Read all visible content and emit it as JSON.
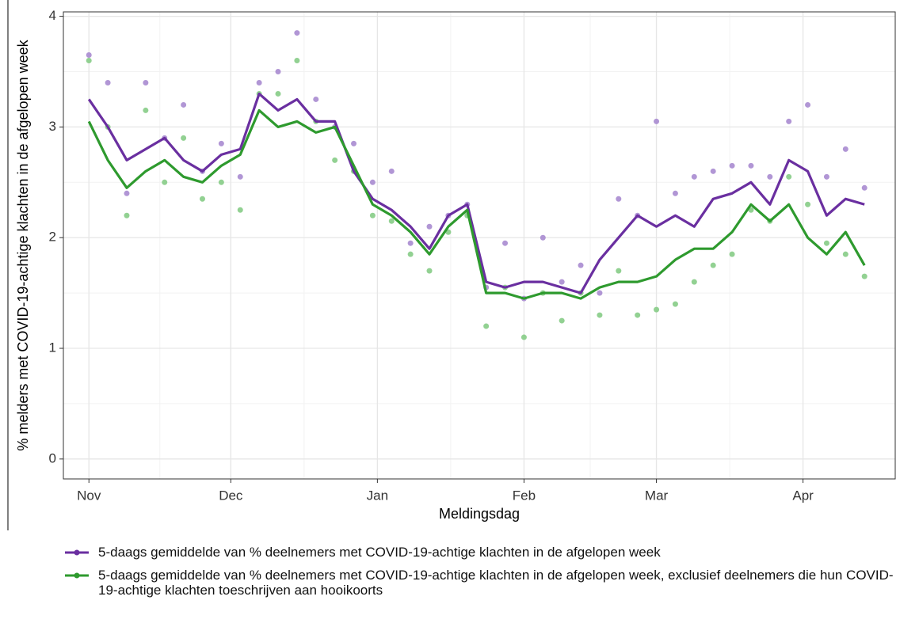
{
  "chart_data": {
    "type": "line",
    "y_label": "% melders met COVID-19-achtige klachten in de afgelopen week",
    "x_label": "Meldingsdag",
    "x": [
      0,
      4,
      8,
      12,
      16,
      20,
      24,
      28,
      32,
      36,
      40,
      44,
      48,
      52,
      56,
      60,
      64,
      68,
      72,
      76,
      80,
      84,
      88,
      92,
      96,
      100,
      104,
      108,
      112,
      116,
      120,
      124,
      128,
      132,
      136,
      140,
      144,
      148,
      152,
      156,
      160,
      164
    ],
    "xlim": [
      -5.4,
      170.5
    ],
    "xticks": [
      {
        "value": 0,
        "label": "Nov"
      },
      {
        "value": 30,
        "label": "Dec"
      },
      {
        "value": 61,
        "label": "Jan"
      },
      {
        "value": 92,
        "label": "Feb"
      },
      {
        "value": 120,
        "label": "Mar"
      },
      {
        "value": 151,
        "label": "Apr"
      }
    ],
    "ylim": [
      -0.18,
      4.04
    ],
    "yticks": [
      0,
      1,
      2,
      3,
      4
    ],
    "grid": true,
    "series": [
      {
        "name": "5-daags gemiddelde van % deelnemers met COVID-19-achtige klachten in de afgelopen week",
        "color": "#6a2fa0",
        "dot_color": "#a98bd0",
        "values": [
          3.25,
          3.0,
          2.7,
          2.8,
          2.9,
          2.7,
          2.6,
          2.75,
          2.8,
          3.3,
          3.15,
          3.25,
          3.05,
          3.05,
          2.6,
          2.35,
          2.25,
          2.1,
          1.9,
          2.2,
          2.3,
          1.6,
          1.55,
          1.6,
          1.6,
          1.55,
          1.5,
          1.8,
          2.0,
          2.2,
          2.1,
          2.2,
          2.1,
          2.35,
          2.4,
          2.5,
          2.3,
          2.7,
          2.6,
          2.2,
          2.35,
          2.3
        ],
        "dots": [
          3.65,
          3.4,
          2.4,
          3.4,
          2.9,
          3.2,
          2.6,
          2.85,
          2.55,
          3.4,
          3.5,
          3.85,
          3.25,
          3.0,
          2.85,
          2.5,
          2.6,
          1.95,
          2.1,
          2.2,
          2.3,
          1.55,
          1.95,
          1.45,
          2.0,
          1.6,
          1.75,
          1.5,
          2.35,
          2.2,
          3.05,
          2.4,
          2.55,
          2.6,
          2.65,
          2.65,
          2.55,
          3.05,
          3.2,
          2.55,
          2.8,
          2.45
        ]
      },
      {
        "name": "5-daags gemiddelde van % deelnemers met COVID-19-achtige klachten in de afgelopen week, exclusief deelnemers die hun COVID-19-achtige klachten toeschrijven aan hooikoorts",
        "color": "#2e9a2e",
        "dot_color": "#86cc86",
        "values": [
          3.05,
          2.7,
          2.45,
          2.6,
          2.7,
          2.55,
          2.5,
          2.65,
          2.75,
          3.15,
          3.0,
          3.05,
          2.95,
          3.0,
          2.65,
          2.3,
          2.2,
          2.05,
          1.85,
          2.1,
          2.25,
          1.5,
          1.5,
          1.45,
          1.5,
          1.5,
          1.45,
          1.55,
          1.6,
          1.6,
          1.65,
          1.8,
          1.9,
          1.9,
          2.05,
          2.3,
          2.15,
          2.3,
          2.0,
          1.85,
          2.05,
          1.75
        ],
        "dots": [
          3.6,
          3.0,
          2.2,
          3.15,
          2.5,
          2.9,
          2.35,
          2.5,
          2.25,
          3.3,
          3.3,
          3.6,
          3.05,
          2.7,
          2.6,
          2.2,
          2.15,
          1.85,
          1.7,
          2.05,
          2.2,
          1.2,
          1.55,
          1.1,
          1.5,
          1.25,
          1.5,
          1.3,
          1.7,
          1.3,
          1.35,
          1.4,
          1.6,
          1.75,
          1.85,
          2.25,
          2.15,
          2.55,
          2.3,
          1.95,
          1.85,
          1.65
        ]
      }
    ]
  }
}
